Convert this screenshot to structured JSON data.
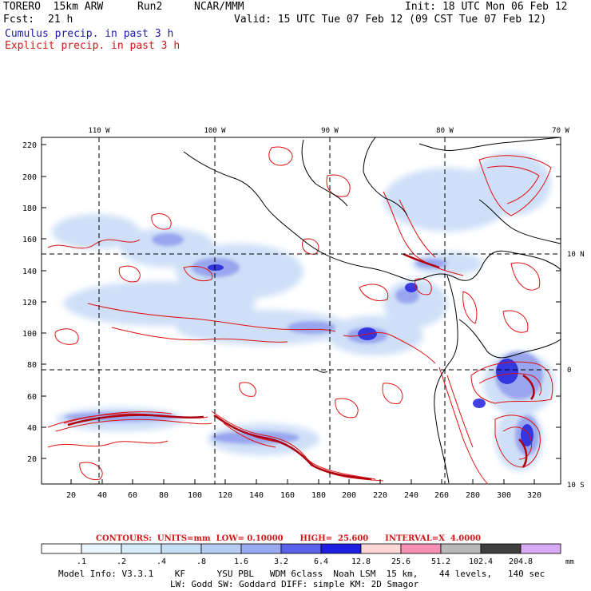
{
  "header": {
    "model": "TORERO  15km ARW",
    "run": "Run2",
    "org": "NCAR/MMM",
    "init": "Init: 18 UTC Mon 06 Feb 12",
    "fcst_label": "Fcst:",
    "fcst_value": "21 h",
    "valid": "Valid: 15 UTC Tue 07 Feb 12 (09 CST Tue 07 Feb 12)",
    "legend_cumulus": "Cumulus precip. in past 3 h",
    "legend_explicit": "Explicit precip. in past 3 h"
  },
  "map": {
    "lon_labels": [
      "110 W",
      "100 W",
      "90 W",
      "80 W",
      "70 W"
    ],
    "lat_labels": [
      "10 N",
      "0",
      "10 S"
    ],
    "y_ticks": [
      "220",
      "200",
      "180",
      "160",
      "140",
      "120",
      "100",
      "80",
      "60",
      "40",
      "20"
    ],
    "x_ticks": [
      "20",
      "40",
      "60",
      "80",
      "100",
      "120",
      "140",
      "160",
      "180",
      "200",
      "220",
      "240",
      "260",
      "280",
      "300",
      "320"
    ]
  },
  "colorbar": {
    "contours_text": "CONTOURS:  UNITS=mm  LOW= 0.10000      HIGH=  25.600      INTERVAL=X  4.0000",
    "labels": [
      ".1",
      ".2",
      ".4",
      ".8",
      "1.6",
      "3.2",
      "6.4",
      "12.8",
      "25.6",
      "51.2",
      "102.4",
      "204.8"
    ],
    "units": "mm",
    "colors": [
      "#ffffff",
      "#eaf6ff",
      "#d6ecfb",
      "#c4dff5",
      "#b5cdf2",
      "#9aaaf0",
      "#5b62ea",
      "#1e1ee0",
      "#ffd6d6",
      "#f58fb4",
      "#b8b8b8",
      "#404040",
      "#d8aaf5"
    ]
  },
  "footer": {
    "line1": "Model Info: V3.3.1    KF      YSU PBL   WDM 6class  Noah LSM  15 km,    44 levels,   140 sec",
    "line2": "LW: Godd SW: Goddard DIFF: simple KM: 2D Smagor"
  }
}
